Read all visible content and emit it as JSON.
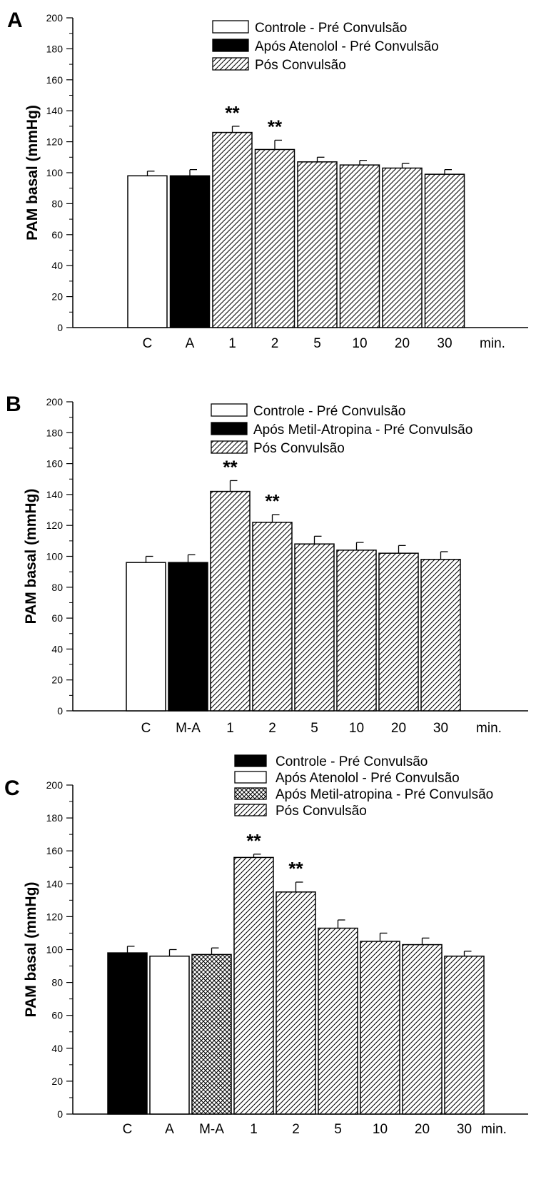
{
  "chart_data": [
    {
      "panel": "A",
      "type": "bar",
      "title": "",
      "xlabel": "",
      "ylabel": "PAM basal (mmHg)",
      "ylim": [
        0,
        200
      ],
      "yticks": [
        "0",
        "20",
        "40",
        "60",
        "80",
        "100",
        "120",
        "140",
        "160",
        "180",
        "200"
      ],
      "categories": [
        "C",
        "A",
        "1",
        "2",
        "5",
        "10",
        "20",
        "30"
      ],
      "x_unit": "min.",
      "values": [
        98,
        98,
        126,
        115,
        107,
        105,
        103,
        99
      ],
      "errors": [
        3,
        4,
        4,
        6,
        3,
        3,
        3,
        3
      ],
      "bar_styles": [
        "white",
        "black",
        "hatch",
        "hatch",
        "hatch",
        "hatch",
        "hatch",
        "hatch"
      ],
      "significance": [
        "",
        "",
        "**",
        "**",
        "",
        "",
        "",
        ""
      ],
      "legend": [
        {
          "label": "Controle - Pré Convulsão",
          "style": "white"
        },
        {
          "label": "Após Atenolol - Pré Convulsão",
          "style": "black"
        },
        {
          "label": "Pós Convulsão",
          "style": "hatch"
        }
      ],
      "legend_position": "top-right",
      "grid": false
    },
    {
      "panel": "B",
      "type": "bar",
      "title": "",
      "xlabel": "",
      "ylabel": "PAM basal (mmHg)",
      "ylim": [
        0,
        200
      ],
      "yticks": [
        "0",
        "20",
        "40",
        "60",
        "80",
        "100",
        "120",
        "140",
        "160",
        "180",
        "200"
      ],
      "categories": [
        "C",
        "M-A",
        "1",
        "2",
        "5",
        "10",
        "20",
        "30"
      ],
      "x_unit": "min.",
      "values": [
        96,
        96,
        142,
        122,
        108,
        104,
        102,
        98
      ],
      "errors": [
        4,
        5,
        7,
        5,
        5,
        5,
        5,
        5
      ],
      "bar_styles": [
        "white",
        "black",
        "hatch",
        "hatch",
        "hatch",
        "hatch",
        "hatch",
        "hatch"
      ],
      "significance": [
        "",
        "",
        "**",
        "**",
        "",
        "",
        "",
        ""
      ],
      "legend": [
        {
          "label": "Controle - Pré Convulsão",
          "style": "white"
        },
        {
          "label": "Após Metil-Atropina - Pré Convulsão",
          "style": "black"
        },
        {
          "label": "Pós Convulsão",
          "style": "hatch"
        }
      ],
      "legend_position": "top-right",
      "grid": false
    },
    {
      "panel": "C",
      "type": "bar",
      "title": "",
      "xlabel": "",
      "ylabel": "PAM basal (mmHg)",
      "ylim": [
        0,
        200
      ],
      "yticks": [
        "0",
        "20",
        "40",
        "60",
        "80",
        "100",
        "120",
        "140",
        "160",
        "180",
        "200"
      ],
      "categories": [
        "C",
        "A",
        "M-A",
        "1",
        "2",
        "5",
        "10",
        "20",
        "30"
      ],
      "x_unit": "min.",
      "values": [
        98,
        96,
        97,
        156,
        135,
        113,
        105,
        103,
        96
      ],
      "errors": [
        4,
        4,
        4,
        2,
        6,
        5,
        5,
        4,
        3
      ],
      "bar_styles": [
        "black",
        "white",
        "crosshatch",
        "hatch",
        "hatch",
        "hatch",
        "hatch",
        "hatch",
        "hatch"
      ],
      "significance": [
        "",
        "",
        "",
        "**",
        "**",
        "",
        "",
        "",
        ""
      ],
      "legend": [
        {
          "label": "Controle - Pré Convulsão",
          "style": "black"
        },
        {
          "label": "Após Atenolol - Pré Convulsão",
          "style": "white"
        },
        {
          "label": "Após Metil-atropina - Pré Convulsão",
          "style": "crosshatch"
        },
        {
          "label": "Pós Convulsão",
          "style": "hatch"
        }
      ],
      "legend_position": "top-right",
      "grid": false
    }
  ]
}
